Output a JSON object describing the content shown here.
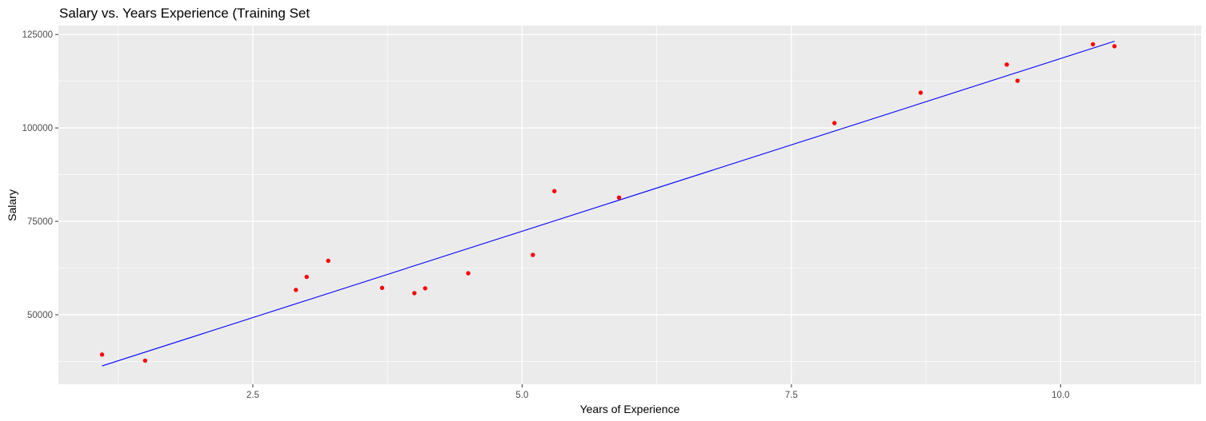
{
  "chart_data": {
    "type": "scatter",
    "title": "Salary vs. Years Experience (Training Set",
    "xlabel": "Years of Experience",
    "ylabel": "Salary",
    "xlim": [
      0.695,
      11.305
    ],
    "ylim": [
      31400,
      127400
    ],
    "x_ticks": [
      2.5,
      5.0,
      7.5,
      10.0
    ],
    "x_tick_labels": [
      "2.5",
      "5.0",
      "7.5",
      "10.0"
    ],
    "y_ticks": [
      50000,
      75000,
      100000,
      125000
    ],
    "y_tick_labels": [
      "50000",
      "75000",
      "100000",
      "125000"
    ],
    "grid": true,
    "panel_background": "#ebebeb",
    "grid_color": "#ffffff",
    "series": [
      {
        "type": "scatter",
        "color": "#ff0000",
        "points": [
          {
            "x": 1.1,
            "y": 39343
          },
          {
            "x": 1.5,
            "y": 37731
          },
          {
            "x": 2.9,
            "y": 56642
          },
          {
            "x": 3.0,
            "y": 60150
          },
          {
            "x": 3.2,
            "y": 64445
          },
          {
            "x": 3.7,
            "y": 57189
          },
          {
            "x": 4.0,
            "y": 55794
          },
          {
            "x": 4.1,
            "y": 57081
          },
          {
            "x": 4.5,
            "y": 61111
          },
          {
            "x": 5.1,
            "y": 66029
          },
          {
            "x": 5.3,
            "y": 83088
          },
          {
            "x": 5.9,
            "y": 81363
          },
          {
            "x": 7.9,
            "y": 101302
          },
          {
            "x": 8.7,
            "y": 109431
          },
          {
            "x": 9.5,
            "y": 116969
          },
          {
            "x": 9.6,
            "y": 112635
          },
          {
            "x": 10.3,
            "y": 122391
          },
          {
            "x": 10.5,
            "y": 121872
          }
        ]
      },
      {
        "type": "line",
        "color": "#0000ff",
        "points": [
          {
            "x": 1.1,
            "y": 36300
          },
          {
            "x": 10.5,
            "y": 123200
          }
        ]
      }
    ]
  }
}
